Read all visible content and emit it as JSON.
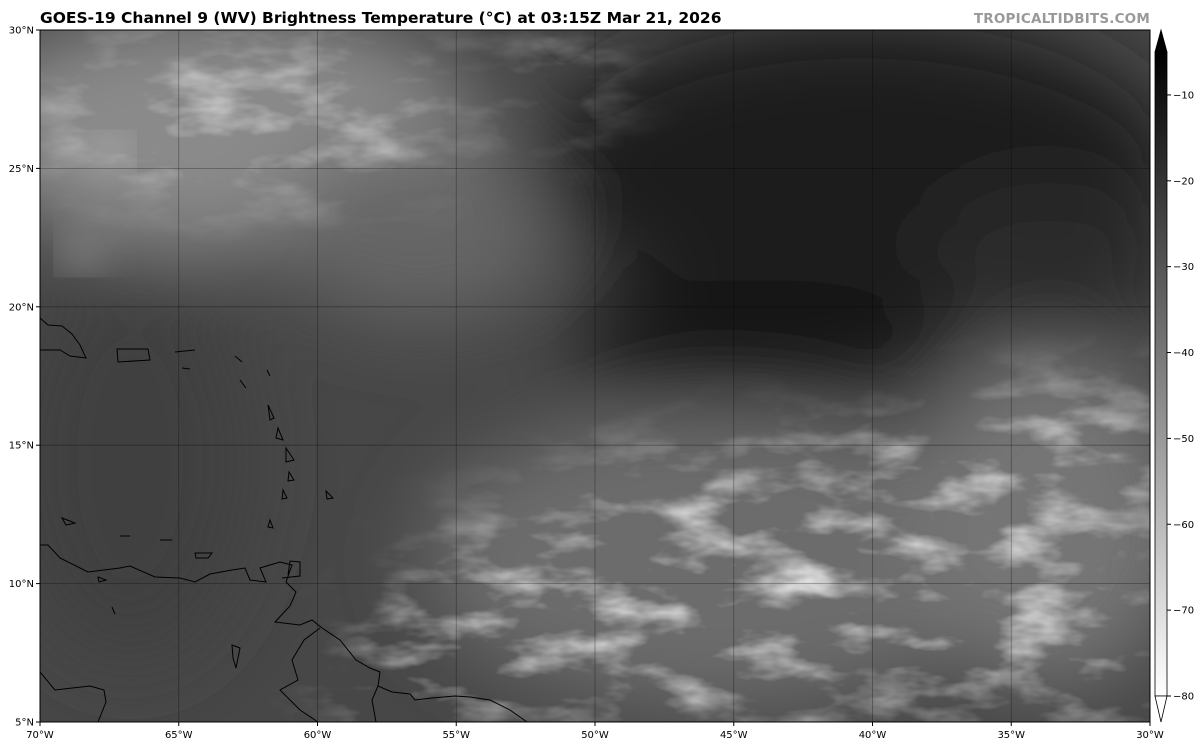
{
  "title": "GOES-19 Channel 9 (WV) Brightness Temperature (°C) at 03:15Z Mar 21, 2026",
  "watermark": "TROPICALTIDBITS.COM",
  "map": {
    "projection": "plate carree",
    "lon_range": [
      -70,
      -30
    ],
    "lat_range": [
      5,
      30
    ],
    "gridlines": true,
    "lon_ticks": [
      "70°W",
      "65°W",
      "60°W",
      "55°W",
      "50°W",
      "45°W",
      "40°W",
      "35°W",
      "30°W"
    ],
    "lat_ticks": [
      "5°N",
      "10°N",
      "15°N",
      "20°N",
      "25°N",
      "30°N"
    ],
    "features": [
      "coastlines",
      "borders"
    ],
    "colormap": "grayscale (warm = dark, cold = white)"
  },
  "colorbar": {
    "ticks": [
      "−10",
      "−20",
      "−30",
      "−40",
      "−50",
      "−60",
      "−70",
      "−80"
    ],
    "range": [
      -80,
      -5
    ],
    "extend": "both",
    "top_color": "#000000",
    "bottom_color": "#ffffff"
  }
}
